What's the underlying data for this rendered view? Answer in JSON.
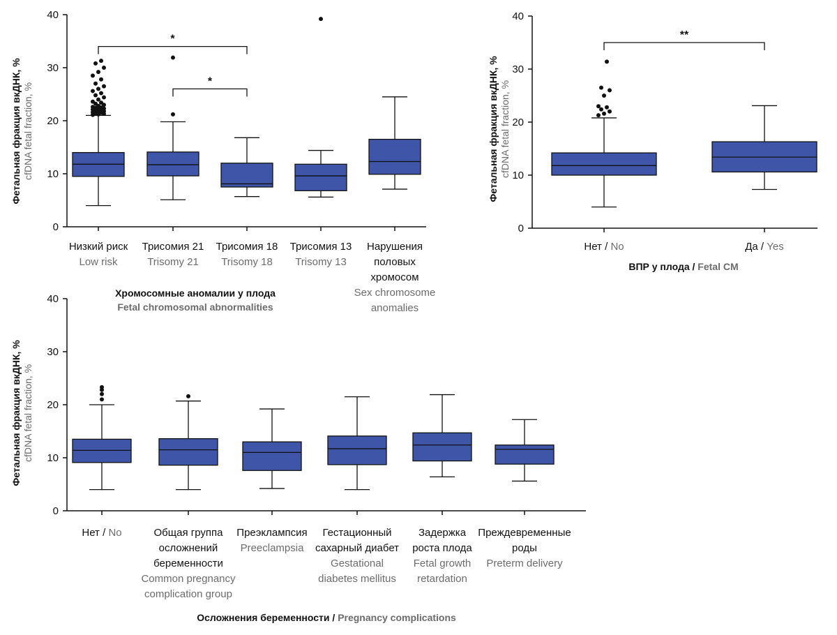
{
  "colors": {
    "box_fill": "#3f56a8",
    "line": "#111111"
  },
  "chart_data": [
    {
      "type": "box",
      "id": "chromosomal",
      "ylabel_ru": "Фетальная фракция вкДНК, %",
      "ylabel_en": "cfDNA fetal fraction, %",
      "xlabel_ru": "Хромосомные аномалии у плода",
      "xlabel_en": "Fetal chromosomal abnormalities",
      "ylim": [
        0,
        40
      ],
      "yticks": [
        0,
        10,
        20,
        30,
        40
      ],
      "categories": [
        {
          "ru": [
            "Низкий риск"
          ],
          "en": [
            "Low risk"
          ],
          "min": 4.0,
          "q1": 9.5,
          "median": 11.8,
          "q3": 14.0,
          "max": 21.0,
          "outliers": [
            21.1,
            21.2,
            21.3,
            21.4,
            21.5,
            21.6,
            21.7,
            21.8,
            21.9,
            22.0,
            22.1,
            22.2,
            22.3,
            22.4,
            22.5,
            22.6,
            22.8,
            23.0,
            23.2,
            23.4,
            23.6,
            24.0,
            24.4,
            24.8,
            25.2,
            25.6,
            26.0,
            26.5,
            27.0,
            27.8,
            28.5,
            29.2,
            30.0,
            30.8,
            31.3
          ]
        },
        {
          "ru": [
            "Трисомия 21"
          ],
          "en": [
            "Trisomy 21"
          ],
          "min": 5.1,
          "q1": 9.6,
          "median": 11.7,
          "q3": 14.1,
          "max": 19.8,
          "outliers": [
            21.2,
            31.9
          ]
        },
        {
          "ru": [
            "Трисомия 18"
          ],
          "en": [
            "Trisomy 18"
          ],
          "min": 5.7,
          "q1": 7.5,
          "median": 8.1,
          "q3": 12.0,
          "max": 16.8,
          "outliers": []
        },
        {
          "ru": [
            "Трисомия 13"
          ],
          "en": [
            "Trisomy 13"
          ],
          "min": 5.6,
          "q1": 6.8,
          "median": 9.6,
          "q3": 11.8,
          "max": 14.4,
          "outliers": [
            39.2
          ]
        },
        {
          "ru": [
            "Нарушения",
            "половых",
            "хромосом"
          ],
          "en": [
            "Sex chromosome",
            "anomalies"
          ],
          "min": 7.1,
          "q1": 9.9,
          "median": 12.3,
          "q3": 16.5,
          "max": 24.5,
          "outliers": []
        }
      ],
      "significance": [
        {
          "from": 0,
          "to": 2,
          "y": 34,
          "label": "*"
        },
        {
          "from": 1,
          "to": 2,
          "y": 26,
          "label": "*"
        }
      ]
    },
    {
      "type": "box",
      "id": "malformations",
      "ylabel_ru": "Фетальная фракция вкДНК, %",
      "ylabel_en": "cfDNA fetal fraction, %",
      "xlabel_ru": "ВПР у плода",
      "xlabel_sep": " / ",
      "xlabel_en": "Fetal CM",
      "ylim": [
        0,
        40
      ],
      "yticks": [
        0,
        10,
        20,
        30,
        40
      ],
      "categories": [
        {
          "ru": [
            "Нет / "
          ],
          "en": [
            "No"
          ],
          "inline": true,
          "min": 4.0,
          "q1": 10.0,
          "median": 11.8,
          "q3": 14.2,
          "max": 20.8,
          "outliers": [
            21.3,
            21.6,
            22.0,
            22.4,
            22.8,
            23.0,
            25.0,
            26.0,
            26.5,
            31.4
          ]
        },
        {
          "ru": [
            "Да / "
          ],
          "en": [
            "Yes"
          ],
          "inline": true,
          "min": 7.3,
          "q1": 10.6,
          "median": 13.4,
          "q3": 16.3,
          "max": 23.1,
          "outliers": []
        }
      ],
      "significance": [
        {
          "from": 0,
          "to": 1,
          "y": 35,
          "label": "**"
        }
      ]
    },
    {
      "type": "box",
      "id": "pregnancy",
      "ylabel_ru": "Фетальная фракция вкДНК, %",
      "ylabel_en": "cfDNA fetal fraction, %",
      "xlabel_ru": "Осложнения беременности",
      "xlabel_sep": " / ",
      "xlabel_en": "Pregnancy complications",
      "ylim": [
        0,
        40
      ],
      "yticks": [
        0,
        10,
        20,
        30,
        40
      ],
      "categories": [
        {
          "ru": [
            "Нет / "
          ],
          "en": [
            "No"
          ],
          "inline": true,
          "min": 4.0,
          "q1": 9.1,
          "median": 11.4,
          "q3": 13.5,
          "max": 20.0,
          "outliers": [
            21.0,
            22.0,
            22.8,
            23.3
          ]
        },
        {
          "ru": [
            "Общая группа",
            "осложнений",
            "беременности"
          ],
          "en": [
            "Common pregnancy",
            "complication group"
          ],
          "min": 4.0,
          "q1": 8.6,
          "median": 11.5,
          "q3": 13.6,
          "max": 20.7,
          "outliers": [
            21.6
          ]
        },
        {
          "ru": [
            "Преэклампсия"
          ],
          "en": [
            "Preeclampsia"
          ],
          "min": 4.2,
          "q1": 7.6,
          "median": 11.0,
          "q3": 13.0,
          "max": 19.2,
          "outliers": []
        },
        {
          "ru": [
            "Гестационный",
            "сахарный диабет"
          ],
          "en": [
            "Gestational",
            "diabetes mellitus"
          ],
          "min": 4.0,
          "q1": 8.7,
          "median": 11.7,
          "q3": 14.1,
          "max": 21.5,
          "outliers": []
        },
        {
          "ru": [
            "Задержка",
            "роста плода"
          ],
          "en": [
            "Fetal growth",
            "retardation"
          ],
          "min": 6.4,
          "q1": 9.4,
          "median": 12.4,
          "q3": 14.7,
          "max": 21.9,
          "outliers": []
        },
        {
          "ru": [
            "Преждевременные",
            "роды"
          ],
          "en": [
            "Preterm delivery"
          ],
          "min": 5.6,
          "q1": 8.8,
          "median": 11.6,
          "q3": 12.4,
          "max": 17.2,
          "outliers": []
        }
      ],
      "significance": []
    }
  ]
}
